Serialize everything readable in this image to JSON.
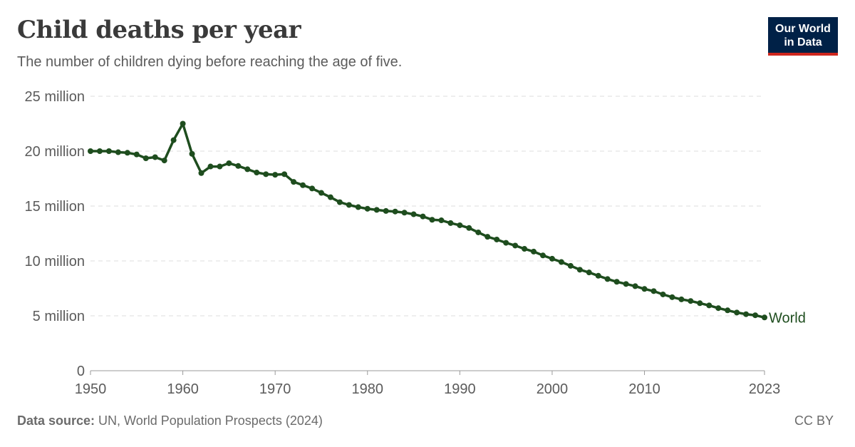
{
  "header": {
    "title": "Child deaths per year",
    "subtitle": "The number of children dying before reaching the age of five."
  },
  "logo": {
    "line1": "Our World",
    "line2": "in Data",
    "bg_color": "#002147",
    "accent_color": "#ce261e"
  },
  "footer": {
    "source_label": "Data source:",
    "source_text": " UN, World Population Prospects (2024)",
    "license": "CC BY"
  },
  "colors": {
    "series": "#1e4d1e",
    "grid": "#dddddd",
    "axis_text": "#5b5b5b"
  },
  "chart_data": {
    "type": "line",
    "title": "Child deaths per year",
    "subtitle": "The number of children dying before reaching the age of five.",
    "xlabel": "",
    "ylabel": "",
    "xlim": [
      1950,
      2023
    ],
    "ylim": [
      0,
      25000000
    ],
    "yticks": [
      0,
      5000000,
      10000000,
      15000000,
      20000000,
      25000000
    ],
    "ytick_labels": [
      "0",
      "5 million",
      "10 million",
      "15 million",
      "20 million",
      "25 million"
    ],
    "xticks": [
      1950,
      1960,
      1970,
      1980,
      1990,
      2000,
      2010,
      2023
    ],
    "xtick_labels": [
      "1950",
      "1960",
      "1970",
      "1980",
      "1990",
      "2000",
      "2010",
      "2023"
    ],
    "grid": true,
    "series": [
      {
        "name": "World",
        "x": [
          1950,
          1951,
          1952,
          1953,
          1954,
          1955,
          1956,
          1957,
          1958,
          1959,
          1960,
          1961,
          1962,
          1963,
          1964,
          1965,
          1966,
          1967,
          1968,
          1969,
          1970,
          1971,
          1972,
          1973,
          1974,
          1975,
          1976,
          1977,
          1978,
          1979,
          1980,
          1981,
          1982,
          1983,
          1984,
          1985,
          1986,
          1987,
          1988,
          1989,
          1990,
          1991,
          1992,
          1993,
          1994,
          1995,
          1996,
          1997,
          1998,
          1999,
          2000,
          2001,
          2002,
          2003,
          2004,
          2005,
          2006,
          2007,
          2008,
          2009,
          2010,
          2011,
          2012,
          2013,
          2014,
          2015,
          2016,
          2017,
          2018,
          2019,
          2020,
          2021,
          2022,
          2023
        ],
        "values": [
          20000000,
          20000000,
          20000000,
          19900000,
          19850000,
          19700000,
          19350000,
          19450000,
          19150000,
          21000000,
          22500000,
          19750000,
          18000000,
          18600000,
          18600000,
          18900000,
          18650000,
          18350000,
          18050000,
          17900000,
          17850000,
          17900000,
          17200000,
          16900000,
          16600000,
          16200000,
          15800000,
          15350000,
          15100000,
          14900000,
          14750000,
          14650000,
          14550000,
          14500000,
          14400000,
          14250000,
          14050000,
          13750000,
          13700000,
          13450000,
          13250000,
          13000000,
          12600000,
          12200000,
          11950000,
          11650000,
          11400000,
          11100000,
          10850000,
          10500000,
          10200000,
          9900000,
          9550000,
          9200000,
          8950000,
          8650000,
          8350000,
          8100000,
          7900000,
          7700000,
          7450000,
          7250000,
          6950000,
          6700000,
          6500000,
          6350000,
          6150000,
          5950000,
          5700000,
          5500000,
          5300000,
          5150000,
          5050000,
          4850000
        ]
      }
    ]
  }
}
